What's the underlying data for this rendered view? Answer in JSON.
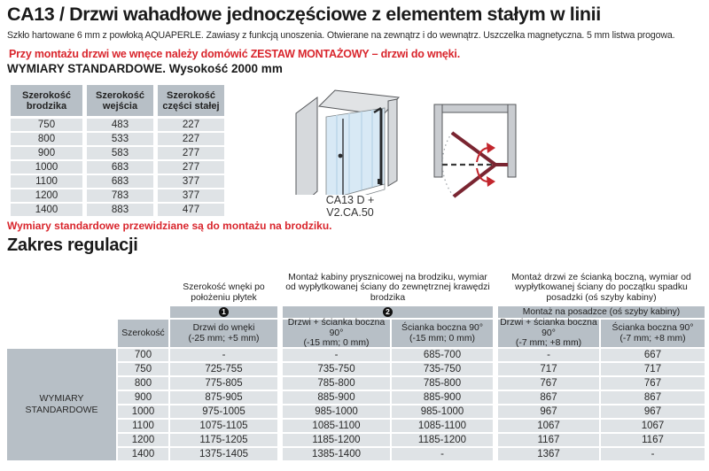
{
  "colors": {
    "accent_red": "#d9262d",
    "header_gray": "#b7bfc6",
    "row_gray": "#dfe3e6",
    "door_dark_red": "#7a2531",
    "arrow_red": "#c2252c"
  },
  "page": {
    "title": "CA13 / Drzwi wahadłowe jednoczęściowe z elementem stałym w linii",
    "subtitle": "Szkło hartowane 6 mm z powłoką AQUAPERLE. Zawiasy z funkcją unoszenia. Otwierane na zewnątrz i do wewnątrz. Uszczelka magnetyczna. 5 mm listwa progowa.",
    "notice": "Przy montażu drzwi we wnęce należy domówić ZESTAW MONTAŻOWY – drzwi do wnęki.",
    "dimensions_heading": "WYMIARY STANDARDOWE. Wysokość 2000 mm"
  },
  "standard_table": {
    "headers": [
      "Szerokość brodzika",
      "Szerokość wejścia",
      "Szerokość części stałej"
    ],
    "rows": [
      [
        "750",
        "483",
        "227"
      ],
      [
        "800",
        "533",
        "227"
      ],
      [
        "900",
        "583",
        "277"
      ],
      [
        "1000",
        "683",
        "277"
      ],
      [
        "1100",
        "683",
        "377"
      ],
      [
        "1200",
        "783",
        "377"
      ],
      [
        "1400",
        "883",
        "477"
      ]
    ],
    "footnote": "Wymiary standardowe przewidziane są do montażu na brodziku."
  },
  "diagram": {
    "model_label_line1": "CA13 D +",
    "model_label_line2": "V2.CA.50"
  },
  "regulation": {
    "heading": "Zakres regulacji",
    "group1_header": "Szerokość wnęki po położeniu płytek",
    "group2_header": "Montaż kabiny prysznicowej na brodziku, wymiar od wypłytkowanej ściany do zewnętrznej krawędzi brodzika",
    "group3_header": "Montaż drzwi ze ścianką boczną, wymiar od wypłytkowanej ściany do początku spadku posadzki (oś szyby kabiny)",
    "band1_label": "1",
    "band2_label": "2",
    "band3_label": "Montaż na posadzce (oś szyby kabiny)",
    "col_headers": [
      {
        "label": "Szerokość",
        "range": ""
      },
      {
        "label": "Drzwi do wnęki",
        "range": "(-25 mm; +5 mm)"
      },
      {
        "label": "Drzwi + ścianka boczna 90°",
        "range": "(-15 mm; 0 mm)"
      },
      {
        "label": "Ścianka boczna 90°",
        "range": "(-15 mm; 0 mm)"
      },
      {
        "label": "Drzwi + ścianka boczna 90°",
        "range": "(-7 mm; +8 mm)"
      },
      {
        "label": "Ścianka boczna 90°",
        "range": "(-7 mm; +8 mm)"
      }
    ],
    "side_label": "WYMIARY STANDARDOWE",
    "rows": [
      [
        "700",
        "-",
        "-",
        "685-700",
        "-",
        "667"
      ],
      [
        "750",
        "725-755",
        "735-750",
        "735-750",
        "717",
        "717"
      ],
      [
        "800",
        "775-805",
        "785-800",
        "785-800",
        "767",
        "767"
      ],
      [
        "900",
        "875-905",
        "885-900",
        "885-900",
        "867",
        "867"
      ],
      [
        "1000",
        "975-1005",
        "985-1000",
        "985-1000",
        "967",
        "967"
      ],
      [
        "1100",
        "1075-1105",
        "1085-1100",
        "1085-1100",
        "1067",
        "1067"
      ],
      [
        "1200",
        "1175-1205",
        "1185-1200",
        "1185-1200",
        "1167",
        "1167"
      ],
      [
        "1400",
        "1375-1405",
        "1385-1400",
        "-",
        "1367",
        "-"
      ]
    ]
  }
}
